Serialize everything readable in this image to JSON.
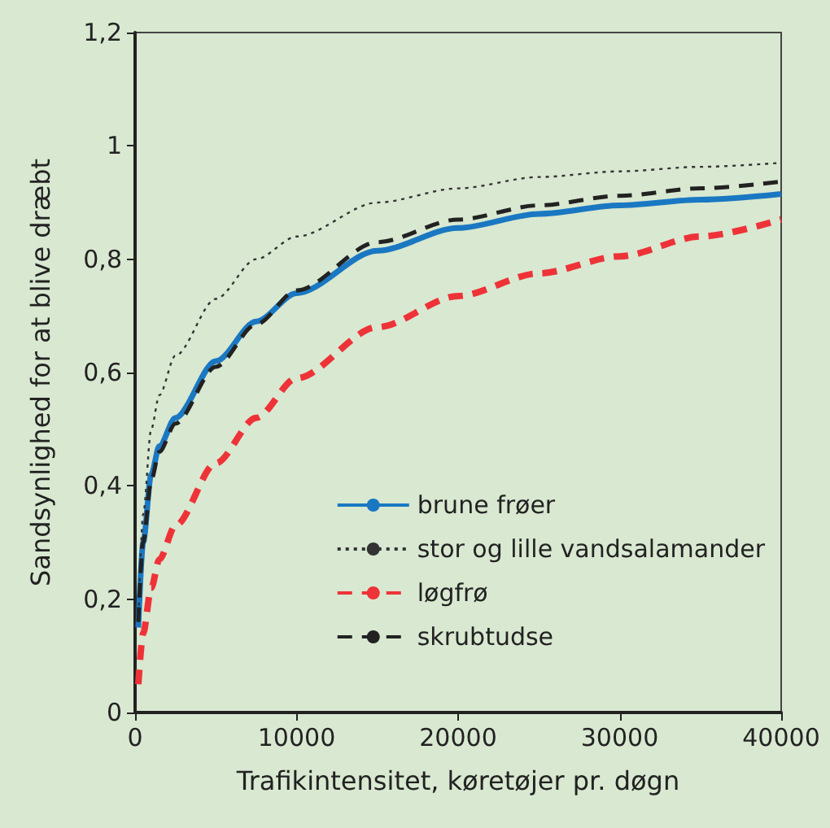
{
  "chart_data": {
    "type": "line",
    "xlabel": "Trafikintensitet, køretøjer pr. døgn",
    "ylabel": "Sandsynlighed for at blive dræbt",
    "xlim": [
      0,
      40000
    ],
    "xticks": [
      0,
      10000,
      20000,
      30000,
      40000
    ],
    "ylim": [
      0,
      1.2
    ],
    "yticks": [
      {
        "value": 0,
        "label": "0"
      },
      {
        "value": 0.2,
        "label": "0,2"
      },
      {
        "value": 0.4,
        "label": "0,4"
      },
      {
        "value": 0.6,
        "label": "0,6"
      },
      {
        "value": 0.8,
        "label": "0,8"
      },
      {
        "value": 1,
        "label": "1"
      },
      {
        "value": 1.2,
        "label": "1,2"
      }
    ],
    "grid": false,
    "legend": "bottom right",
    "marker": "none",
    "series": [
      {
        "name": "brune frøer",
        "color": "#1a78c2",
        "line_style": "solid",
        "x": [
          200,
          500,
          1000,
          1500,
          2500,
          5000,
          7500,
          10000,
          15000,
          20000,
          25000,
          30000,
          35000,
          40000
        ],
        "values": [
          0.15,
          0.3,
          0.42,
          0.47,
          0.52,
          0.62,
          0.69,
          0.74,
          0.815,
          0.855,
          0.88,
          0.895,
          0.905,
          0.915
        ]
      },
      {
        "name": "stor og lille vandsalamander",
        "color": "#333333",
        "line_style": "dotted",
        "x": [
          200,
          500,
          1000,
          1500,
          2500,
          5000,
          7500,
          10000,
          15000,
          20000,
          25000,
          30000,
          35000,
          40000
        ],
        "values": [
          0.16,
          0.35,
          0.5,
          0.56,
          0.63,
          0.73,
          0.8,
          0.84,
          0.9,
          0.925,
          0.945,
          0.955,
          0.963,
          0.97
        ]
      },
      {
        "name": "løgfrø",
        "color": "#ee3338",
        "line_style": "dashed",
        "x": [
          200,
          500,
          1000,
          1500,
          2500,
          5000,
          7500,
          10000,
          15000,
          20000,
          25000,
          30000,
          35000,
          40000
        ],
        "values": [
          0.05,
          0.14,
          0.22,
          0.27,
          0.33,
          0.44,
          0.52,
          0.59,
          0.68,
          0.735,
          0.775,
          0.805,
          0.84,
          0.87
        ]
      },
      {
        "name": "skrubtudse",
        "color": "#222222",
        "line_style": "dashed",
        "x": [
          200,
          500,
          1000,
          1500,
          2500,
          5000,
          7500,
          10000,
          15000,
          20000,
          25000,
          30000,
          35000,
          40000
        ],
        "values": [
          0.16,
          0.3,
          0.41,
          0.46,
          0.51,
          0.61,
          0.685,
          0.745,
          0.83,
          0.87,
          0.895,
          0.912,
          0.925,
          0.937
        ]
      }
    ]
  }
}
